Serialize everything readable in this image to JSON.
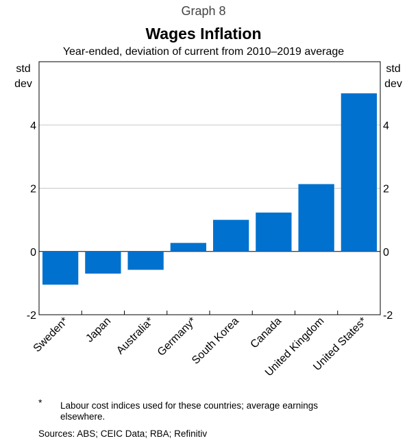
{
  "header": {
    "graph_number": "Graph 8",
    "title": "Wages Inflation",
    "subtitle": "Year-ended, deviation of current from 2010–2019 average"
  },
  "chart_data": {
    "type": "bar",
    "title": "Wages Inflation",
    "subtitle": "Year-ended, deviation of current from 2010–2019 average",
    "categories": [
      "Sweden*",
      "Japan",
      "Australia*",
      "Germany*",
      "South Korea",
      "Canada",
      "United Kingdom",
      "United States*"
    ],
    "values": [
      -1.05,
      -0.7,
      -0.58,
      0.27,
      1.0,
      1.23,
      2.13,
      5.0
    ],
    "ylim": [
      -2,
      6
    ],
    "yticks": [
      -2,
      0,
      2,
      4
    ],
    "ylabel_left": [
      "std",
      "dev"
    ],
    "ylabel_right": [
      "std",
      "dev"
    ],
    "bar_color": "#0071CE",
    "grid": true
  },
  "footnote": {
    "marker": "*",
    "text": "Labour cost indices used for these countries; average earnings elsewhere."
  },
  "sources": "Sources: ABS; CEIC Data; RBA; Refinitiv"
}
